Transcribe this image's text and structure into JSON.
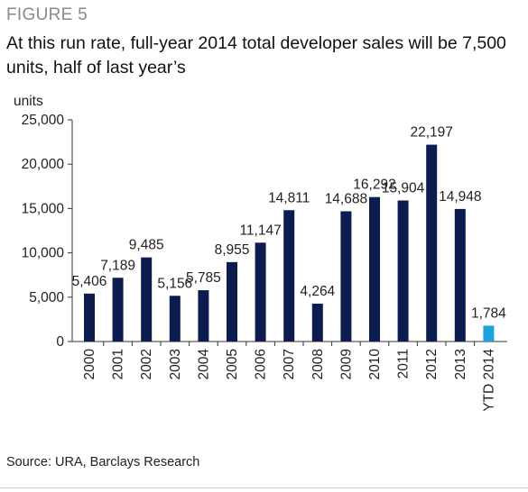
{
  "figure_label": "FIGURE 5",
  "title": "At this run rate, full-year 2014 total developer sales will be 7,500 units, half of last year’s",
  "source": "Source: URA, Barclays Research",
  "chart_data": {
    "type": "bar",
    "ylabel": "units",
    "ylim": [
      0,
      25000
    ],
    "yticks": [
      0,
      5000,
      10000,
      15000,
      20000,
      25000
    ],
    "ytick_labels": [
      "0",
      "5,000",
      "10,000",
      "15,000",
      "20,000",
      "25,000"
    ],
    "grid": false,
    "categories": [
      "2000",
      "2001",
      "2002",
      "2003",
      "2004",
      "2005",
      "2006",
      "2007",
      "2008",
      "2009",
      "2010",
      "2011",
      "2012",
      "2013",
      "YTD 2014"
    ],
    "values": [
      5406,
      7189,
      9485,
      5156,
      5785,
      8955,
      11147,
      14811,
      4264,
      14688,
      16292,
      15904,
      22197,
      14948,
      1784
    ],
    "data_labels": [
      "5,406",
      "7,189",
      "9,485",
      "5,156",
      "5,785",
      "8,955",
      "11,147",
      "14,811",
      "4,264",
      "14,688",
      "16,292",
      "15,904",
      "22,197",
      "14,948",
      "1,784"
    ],
    "colors": {
      "bar": "#0d1c4f",
      "highlight_bar": "#1aa3dc",
      "axis": "#333333"
    },
    "highlight_index": 14
  }
}
